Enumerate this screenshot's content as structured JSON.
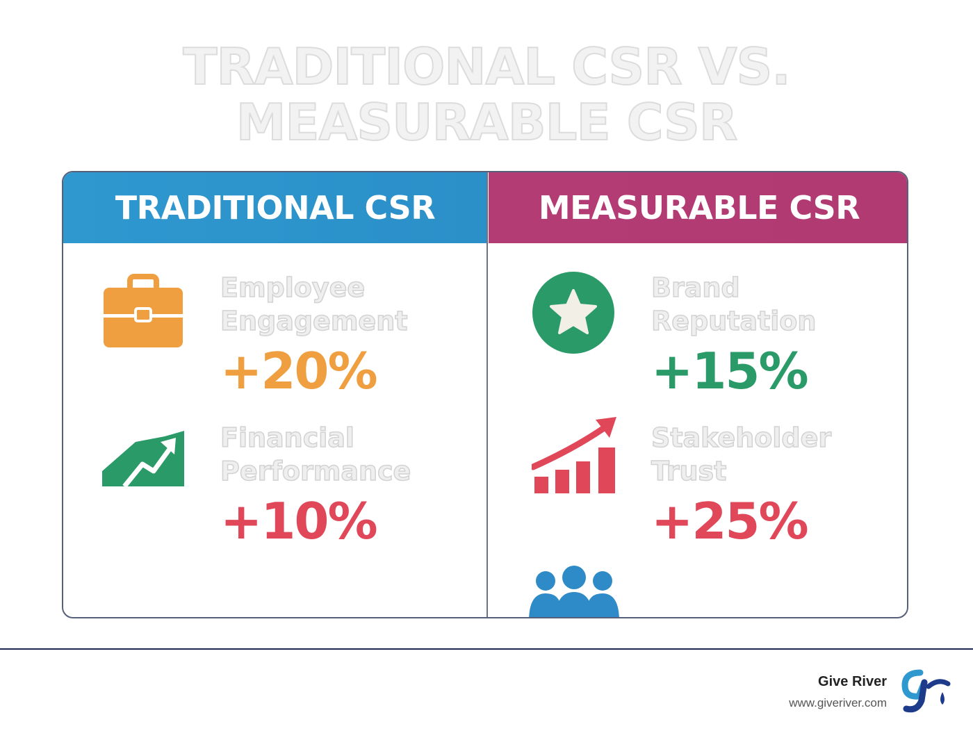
{
  "title": {
    "line1": "TRADITIONAL CSR VS.",
    "line2": "MEASURABLE CSR"
  },
  "columns": {
    "left": {
      "header": "TRADITIONAL CSR"
    },
    "right": {
      "header": "MEASURABLE CSR"
    }
  },
  "metrics": {
    "employee_engagement": {
      "label": "Employee\nEngagement",
      "value": "+20%",
      "color": "#ef9f3f",
      "icon": "briefcase-icon"
    },
    "financial_performance": {
      "label": "Financial\nPerformance",
      "value": "+10%",
      "color": "#e0485a",
      "icon": "growth-chart-icon"
    },
    "brand_reputation": {
      "label": "Brand\nReputation",
      "value": "+15%",
      "color": "#2a9a68",
      "icon": "star-icon"
    },
    "stakeholder_trust": {
      "label": "Stakeholder\nTrust",
      "value": "+25%",
      "color": "#e0485a",
      "icon": "bar-chart-arrow-icon"
    }
  },
  "extra_icon": "people-icon",
  "footer": {
    "brand": "Give River",
    "url": "www.giveriver.com"
  },
  "colors": {
    "traditional": "#2f98cf",
    "measurable": "#b33c74",
    "people": "#2e8bc8",
    "logo": "#1e3a8a"
  }
}
